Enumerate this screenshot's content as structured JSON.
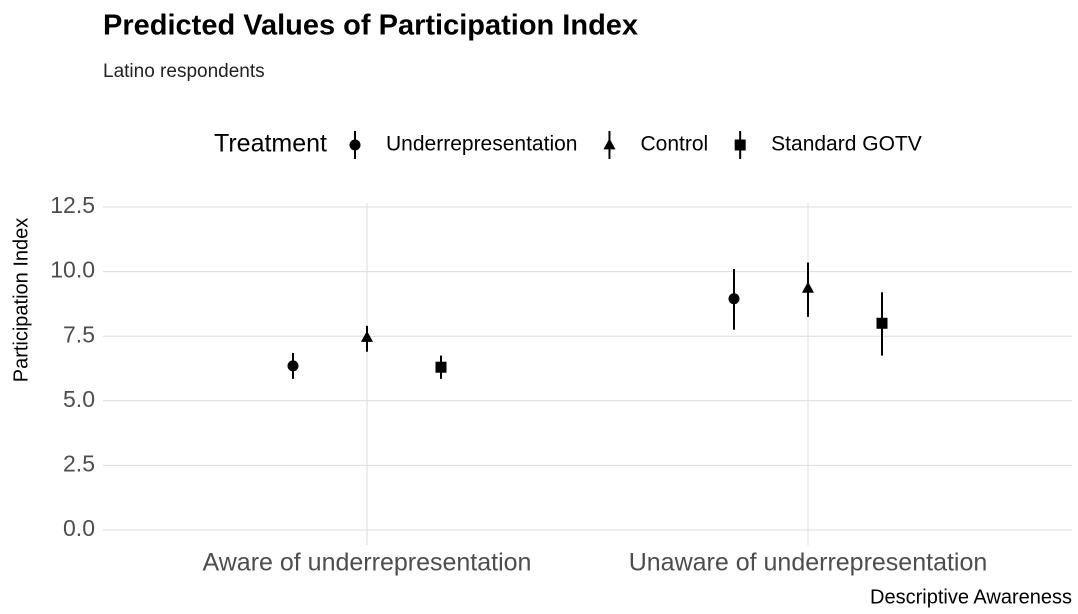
{
  "chart_data": {
    "type": "pointrange",
    "title": "Predicted Values of Participation Index",
    "subtitle": "Latino respondents",
    "x_label": "Descriptive Awareness",
    "y_label": "Participation Index",
    "legend_title": "Treatment",
    "legend_position": "top",
    "grid": true,
    "categories": [
      "Aware of underrepresentation",
      "Unaware of underrepresentation"
    ],
    "series": [
      {
        "name": "Underrepresentation",
        "shape": "circle",
        "color": "#000000",
        "values": [
          6.35,
          8.95
        ],
        "low": [
          5.85,
          7.75
        ],
        "high": [
          6.85,
          10.1
        ]
      },
      {
        "name": "Control",
        "shape": "triangle",
        "color": "#000000",
        "values": [
          7.45,
          9.35
        ],
        "low": [
          6.9,
          8.25
        ],
        "high": [
          7.9,
          10.35
        ]
      },
      {
        "name": "Standard GOTV",
        "shape": "square",
        "color": "#000000",
        "values": [
          6.3,
          8.0
        ],
        "low": [
          5.85,
          6.75
        ],
        "high": [
          6.75,
          9.2
        ]
      }
    ],
    "ylim": [
      0,
      12.5
    ],
    "yticks": [
      {
        "value": 0,
        "label": "0.0"
      },
      {
        "value": 2.5,
        "label": "2.5"
      },
      {
        "value": 5,
        "label": "5.0"
      },
      {
        "value": 7.5,
        "label": "7.5"
      },
      {
        "value": 10,
        "label": "10.0"
      },
      {
        "value": 12.5,
        "label": "12.5"
      }
    ]
  }
}
